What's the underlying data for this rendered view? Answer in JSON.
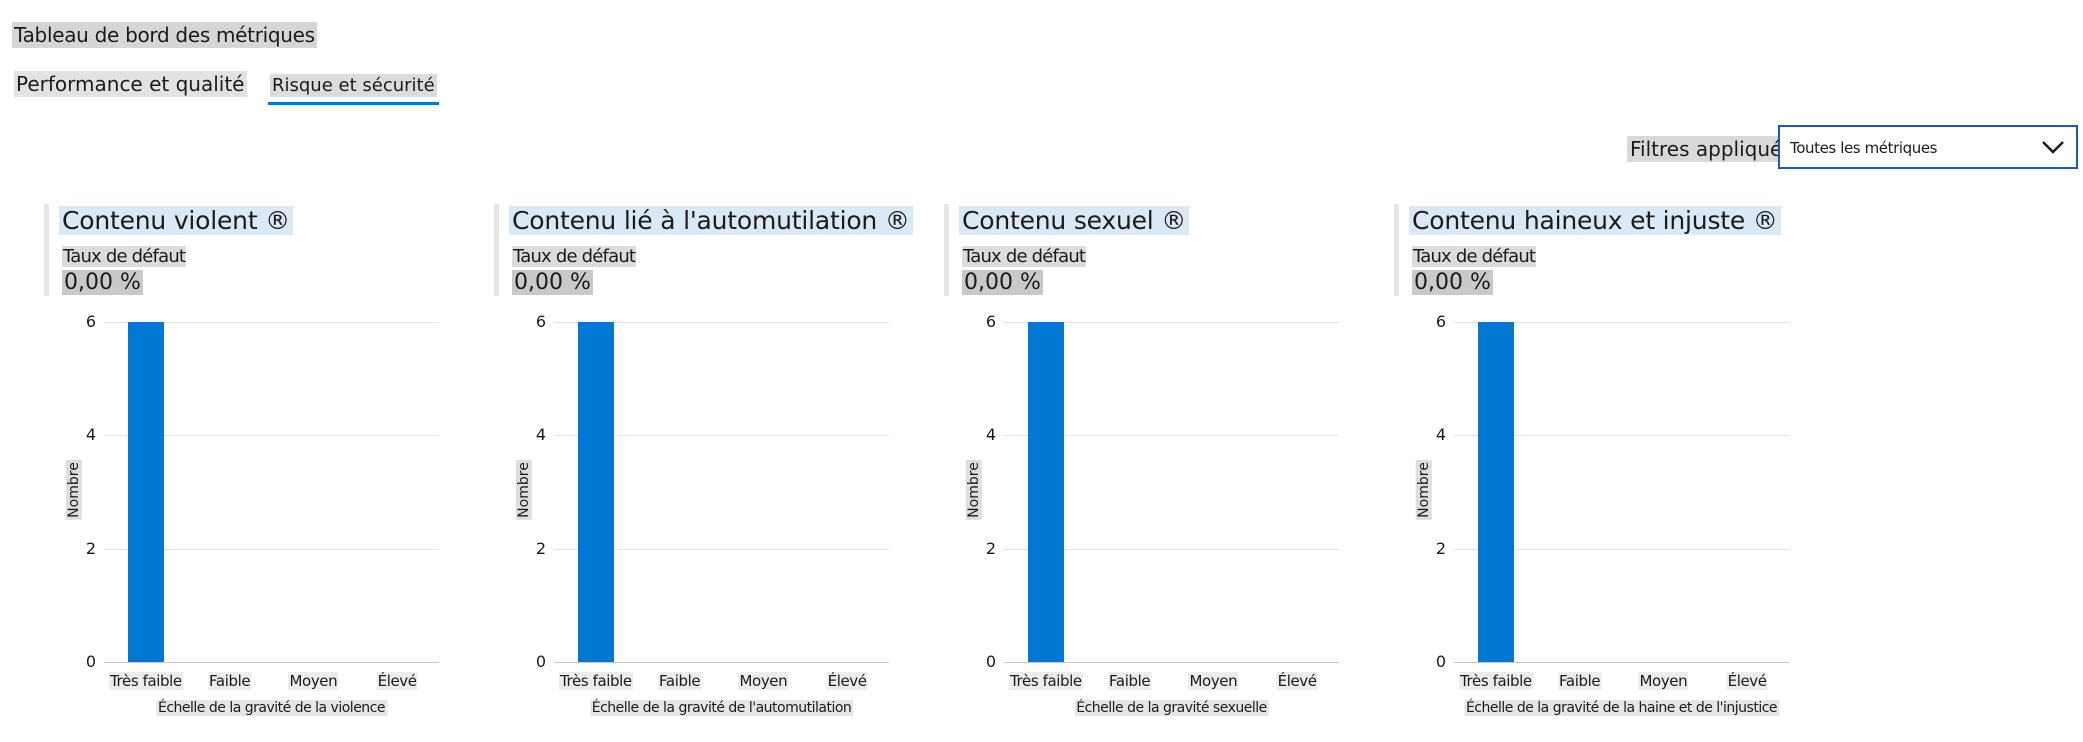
{
  "header": {
    "title": "Tableau de bord des métriques"
  },
  "tabs": [
    {
      "label": "Performance et qualité",
      "active": false
    },
    {
      "label": "Risque et sécurité",
      "active": true
    }
  ],
  "filters": {
    "label": "Filtres appliqués",
    "dropdown_value": "Toutes les métriques",
    "dropdown_icon": "chevron-down-icon"
  },
  "colors": {
    "accent": "#0078d4",
    "dropdown_border": "#1f57b8"
  },
  "cards": [
    {
      "title": "Contenu violent ®",
      "rate_label": "Taux de défaut",
      "rate_value": "0,00 %"
    },
    {
      "title": "Contenu lié à l'automutilation ®",
      "rate_label": "Taux de défaut",
      "rate_value": "0,00 %"
    },
    {
      "title": "Contenu sexuel ®",
      "rate_label": "Taux de défaut",
      "rate_value": "0,00 %"
    },
    {
      "title": "Contenu haineux et injuste ®",
      "rate_label": "Taux de défaut",
      "rate_value": "0,00 %"
    }
  ],
  "chart_data": [
    {
      "type": "bar",
      "categories": [
        "Très faible",
        "Faible",
        "Moyen",
        "Élevé"
      ],
      "values": [
        6,
        0,
        0,
        0
      ],
      "xlabel": "Échelle de la gravité de la violence",
      "ylabel": "Nombre",
      "yticks": [
        0,
        2,
        4,
        6
      ],
      "ylim": [
        0,
        6
      ],
      "grid": true
    },
    {
      "type": "bar",
      "categories": [
        "Très faible",
        "Faible",
        "Moyen",
        "Élevé"
      ],
      "values": [
        6,
        0,
        0,
        0
      ],
      "xlabel": "Échelle de la gravité de l'automutilation",
      "ylabel": "Nombre",
      "yticks": [
        0,
        2,
        4,
        6
      ],
      "ylim": [
        0,
        6
      ],
      "grid": true
    },
    {
      "type": "bar",
      "categories": [
        "Très faible",
        "Faible",
        "Moyen",
        "Élevé"
      ],
      "values": [
        6,
        0,
        0,
        0
      ],
      "xlabel": "Échelle de la gravité sexuelle",
      "ylabel": "Nombre",
      "yticks": [
        0,
        2,
        4,
        6
      ],
      "ylim": [
        0,
        6
      ],
      "grid": true
    },
    {
      "type": "bar",
      "categories": [
        "Très faible",
        "Faible",
        "Moyen",
        "Élevé"
      ],
      "values": [
        6,
        0,
        0,
        0
      ],
      "xlabel": "Échelle de la gravité de la haine et de l'injustice",
      "ylabel": "Nombre",
      "yticks": [
        0,
        2,
        4,
        6
      ],
      "ylim": [
        0,
        6
      ],
      "grid": true
    }
  ]
}
